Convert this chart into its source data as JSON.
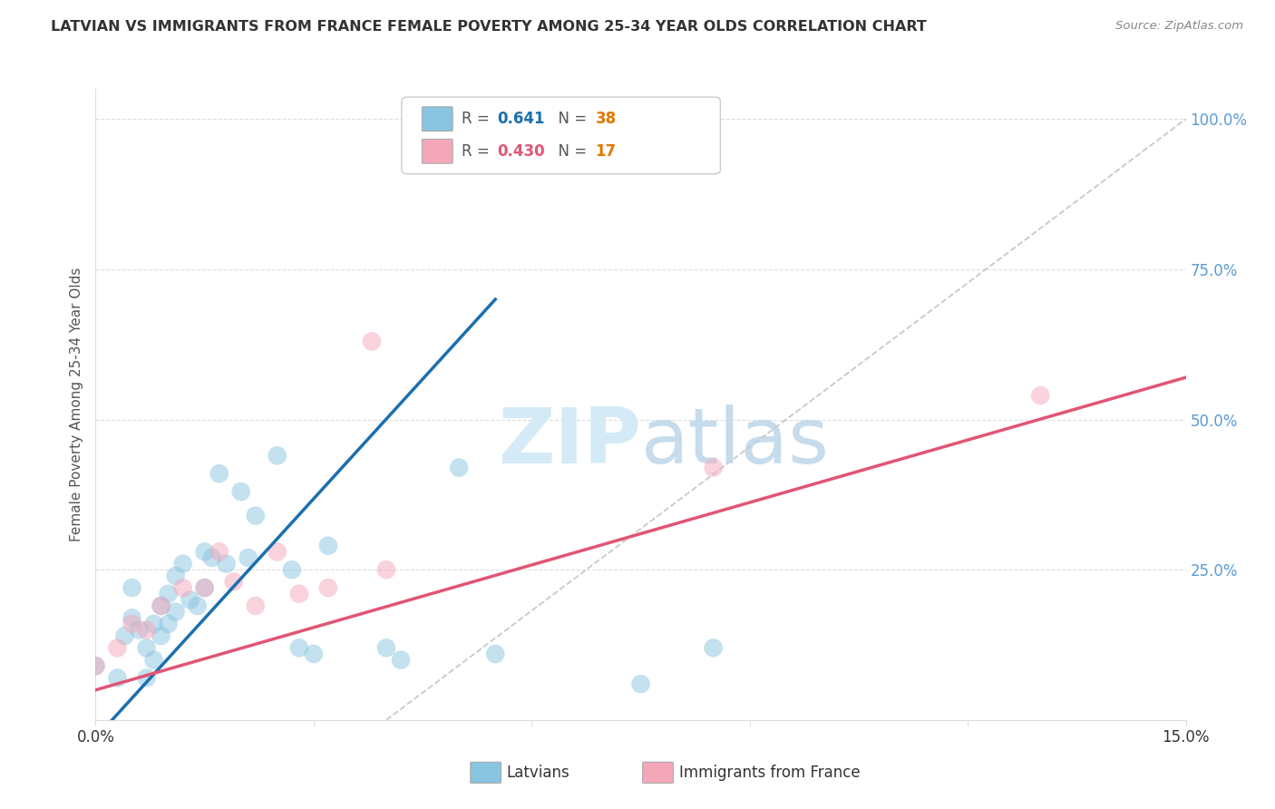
{
  "title": "LATVIAN VS IMMIGRANTS FROM FRANCE FEMALE POVERTY AMONG 25-34 YEAR OLDS CORRELATION CHART",
  "source": "Source: ZipAtlas.com",
  "ylabel": "Female Poverty Among 25-34 Year Olds",
  "xlim": [
    0,
    0.15
  ],
  "ylim": [
    0,
    1.05
  ],
  "latvians_R": "0.641",
  "latvians_N": "38",
  "france_R": "0.430",
  "france_N": "17",
  "blue_line_x": [
    0,
    0.055
  ],
  "blue_line_y": [
    -0.03,
    0.7
  ],
  "pink_line_x": [
    0,
    0.15
  ],
  "pink_line_y": [
    0.05,
    0.57
  ],
  "ref_line_x": [
    0.04,
    0.15
  ],
  "ref_line_y": [
    0.0,
    1.0
  ],
  "latvians_x": [
    0.0,
    0.003,
    0.004,
    0.005,
    0.005,
    0.006,
    0.007,
    0.007,
    0.008,
    0.008,
    0.009,
    0.009,
    0.01,
    0.01,
    0.011,
    0.011,
    0.012,
    0.013,
    0.014,
    0.015,
    0.015,
    0.016,
    0.017,
    0.018,
    0.02,
    0.021,
    0.022,
    0.025,
    0.027,
    0.028,
    0.03,
    0.032,
    0.04,
    0.042,
    0.05,
    0.055,
    0.075,
    0.085
  ],
  "latvians_y": [
    0.09,
    0.07,
    0.14,
    0.22,
    0.17,
    0.15,
    0.07,
    0.12,
    0.1,
    0.16,
    0.14,
    0.19,
    0.21,
    0.16,
    0.18,
    0.24,
    0.26,
    0.2,
    0.19,
    0.28,
    0.22,
    0.27,
    0.41,
    0.26,
    0.38,
    0.27,
    0.34,
    0.44,
    0.25,
    0.12,
    0.11,
    0.29,
    0.12,
    0.1,
    0.42,
    0.11,
    0.06,
    0.12
  ],
  "france_x": [
    0.0,
    0.003,
    0.005,
    0.007,
    0.009,
    0.012,
    0.015,
    0.017,
    0.019,
    0.022,
    0.025,
    0.028,
    0.032,
    0.038,
    0.04,
    0.085,
    0.13
  ],
  "france_y": [
    0.09,
    0.12,
    0.16,
    0.15,
    0.19,
    0.22,
    0.22,
    0.28,
    0.23,
    0.19,
    0.28,
    0.21,
    0.22,
    0.63,
    0.25,
    0.42,
    0.54
  ],
  "color_blue": "#89c4e1",
  "color_pink": "#f4a7b9",
  "color_line_blue": "#1a6faf",
  "color_line_pink": "#e05575",
  "color_ref_line": "#bbbbbb",
  "watermark_color": "#d4eaf7",
  "background_color": "#ffffff",
  "grid_color": "#dddddd",
  "right_tick_color": "#5b9bd5",
  "title_color": "#333333",
  "source_color": "#888888"
}
